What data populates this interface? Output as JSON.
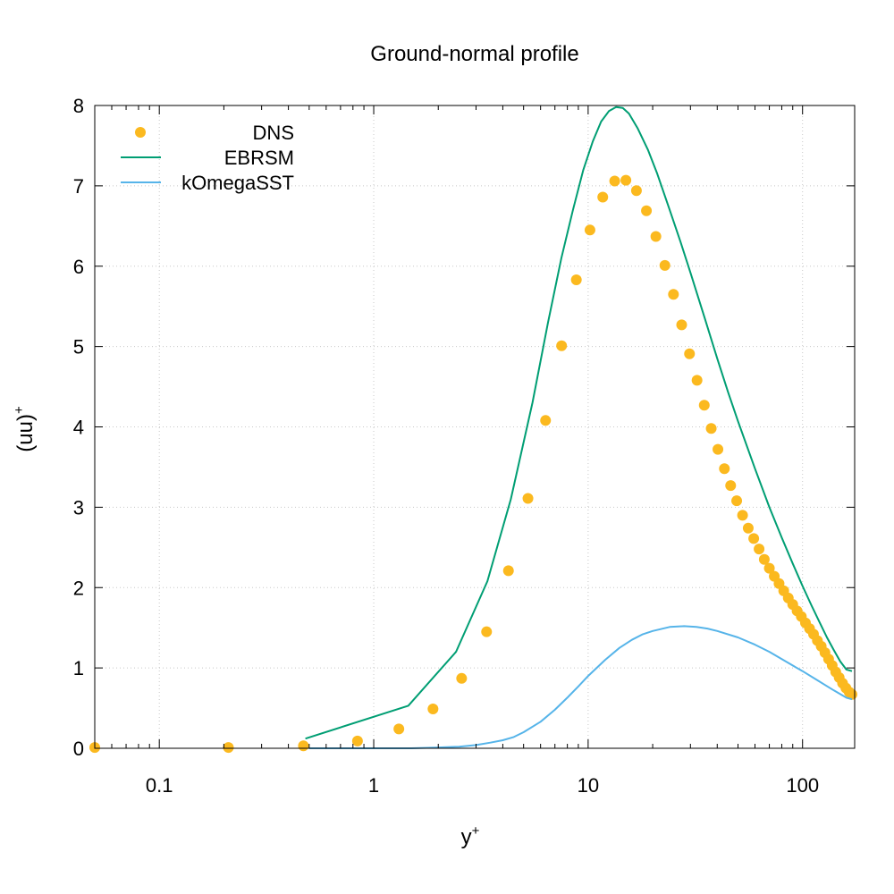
{
  "chart_data": {
    "type": "line",
    "title": "Ground-normal profile",
    "xlabel": "y",
    "xlabel_sup": "+",
    "ylabel": "(uu)",
    "ylabel_sup": "+",
    "x_scale": "log",
    "xlim": [
      0.05,
      175
    ],
    "ylim": [
      0,
      8
    ],
    "x_ticks": [
      0.1,
      1,
      10,
      100
    ],
    "x_tick_labels": [
      "0.1",
      "1",
      "10",
      "100"
    ],
    "y_ticks": [
      0,
      1,
      2,
      3,
      4,
      5,
      6,
      7,
      8
    ],
    "y_tick_labels": [
      "0",
      "1",
      "2",
      "3",
      "4",
      "5",
      "6",
      "7",
      "8"
    ],
    "grid": true,
    "legend_position": "top-left",
    "series": [
      {
        "name": "DNS",
        "style": "points",
        "color": "#fbb91f",
        "x": [
          0.05,
          0.21,
          0.47,
          0.84,
          1.31,
          1.89,
          2.57,
          3.36,
          4.25,
          5.24,
          6.33,
          7.52,
          8.81,
          10.2,
          11.7,
          13.3,
          15.0,
          16.8,
          18.7,
          20.7,
          22.8,
          25.0,
          27.3,
          29.7,
          32.2,
          34.8,
          37.5,
          40.3,
          43.2,
          46.2,
          49.3,
          52.5,
          55.8,
          59.2,
          62.7,
          66.3,
          70.0,
          73.8,
          77.7,
          81.7,
          85.8,
          90.0,
          94.3,
          98.7,
          103.2,
          107.8,
          112.5,
          117.3,
          122.2,
          127.2,
          132.3,
          137.5,
          142.8,
          148.2,
          153.7,
          159.3,
          165.0,
          170.0
        ],
        "y": [
          0.01,
          0.01,
          0.03,
          0.09,
          0.24,
          0.49,
          0.87,
          1.45,
          2.21,
          3.11,
          4.08,
          5.01,
          5.83,
          6.45,
          6.86,
          7.06,
          7.07,
          6.94,
          6.69,
          6.37,
          6.01,
          5.65,
          5.27,
          4.91,
          4.58,
          4.27,
          3.98,
          3.72,
          3.48,
          3.27,
          3.08,
          2.9,
          2.74,
          2.61,
          2.48,
          2.35,
          2.24,
          2.14,
          2.05,
          1.96,
          1.87,
          1.79,
          1.71,
          1.64,
          1.56,
          1.49,
          1.42,
          1.34,
          1.27,
          1.19,
          1.11,
          1.03,
          0.95,
          0.88,
          0.81,
          0.75,
          0.7,
          0.67
        ]
      },
      {
        "name": "EBRSM",
        "style": "line",
        "color": "#009e73",
        "x": [
          0.48,
          1.45,
          2.42,
          3.39,
          4.36,
          5.5,
          6.5,
          7.5,
          8.5,
          9.5,
          10.5,
          11.5,
          12.5,
          13.5,
          14.5,
          15.5,
          17,
          19,
          21,
          24,
          27,
          30,
          35,
          40,
          45,
          50,
          60,
          70,
          80,
          90,
          100,
          110,
          120,
          130,
          140,
          150,
          160,
          170
        ],
        "y": [
          0.12,
          0.53,
          1.2,
          2.08,
          3.1,
          4.3,
          5.3,
          6.1,
          6.7,
          7.2,
          7.55,
          7.8,
          7.93,
          7.98,
          7.97,
          7.9,
          7.72,
          7.45,
          7.15,
          6.7,
          6.3,
          5.92,
          5.35,
          4.85,
          4.43,
          4.07,
          3.48,
          3.0,
          2.62,
          2.3,
          2.02,
          1.78,
          1.57,
          1.38,
          1.22,
          1.08,
          0.98,
          0.96
        ]
      },
      {
        "name": "kOmegaSST",
        "style": "line",
        "color": "#56b4e9",
        "x": [
          0.5,
          1,
          1.5,
          2,
          2.5,
          3,
          3.5,
          4,
          4.5,
          5,
          6,
          7,
          8,
          9,
          10,
          12,
          14,
          16,
          18,
          20,
          24,
          28,
          32,
          36,
          40,
          50,
          60,
          70,
          80,
          90,
          100,
          120,
          140,
          160,
          170
        ],
        "y": [
          0.0,
          0.0,
          0.0,
          0.01,
          0.02,
          0.04,
          0.07,
          0.1,
          0.14,
          0.2,
          0.33,
          0.48,
          0.63,
          0.77,
          0.9,
          1.1,
          1.25,
          1.35,
          1.42,
          1.46,
          1.51,
          1.52,
          1.51,
          1.49,
          1.46,
          1.38,
          1.29,
          1.2,
          1.11,
          1.03,
          0.96,
          0.83,
          0.72,
          0.63,
          0.61
        ]
      }
    ]
  }
}
